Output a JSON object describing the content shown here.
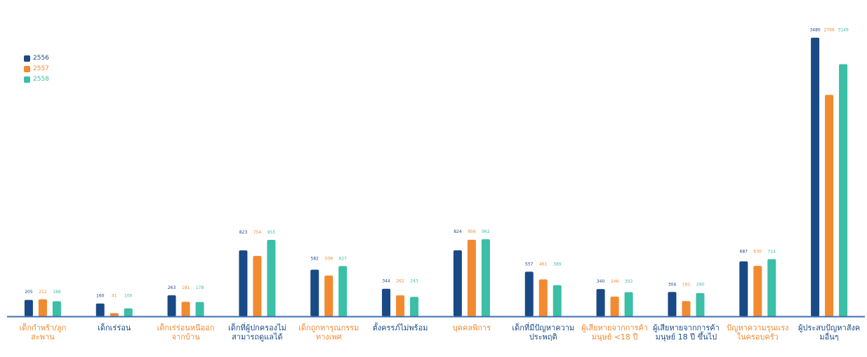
{
  "colors": {
    "s2556": "#1a4a86",
    "s2557": "#f28a30",
    "s2558": "#3bbfa6",
    "axis": "#3d6fae",
    "orange_label": "#f28a30",
    "blue_label": "#1a4a86"
  },
  "legend": [
    "2556",
    "2557",
    "2558"
  ],
  "chart_data": {
    "type": "bar",
    "title": "",
    "xlabel": "",
    "ylabel": "",
    "categories": [
      "เด็กกำพร้า/ลูกสะพาน",
      "เด็กเร่ร่อน",
      "เด็กเร่ร่อนหนีออกจากบ้าน",
      "เด็กที่ผู้ปกครองไม่สามารถดูแลได้",
      "เด็กถูกทารุณกรรมทางเพศ",
      "ตั้งครรภ์ไม่พร้อม",
      "บุคคลพิการ",
      "เด็กที่มีปัญหาความประพฤติ",
      "ผู้เสียหายจากการค้ามนุษย์ <18 ปี",
      "ผู้เสียหายจากการค้ามนุษย์ 18 ปี ขึ้นไป",
      "ปัญหาความรุนแรงในครอบครัว",
      "ผู้ประสบปัญหาสังคมอื่นๆ"
    ],
    "label_colors": [
      "orange",
      "blue",
      "orange",
      "blue",
      "orange",
      "blue",
      "orange",
      "blue",
      "orange",
      "blue",
      "orange",
      "blue"
    ],
    "series": [
      {
        "name": "2556",
        "values": [
          205,
          160,
          263,
          823,
          582,
          344,
          824,
          557,
          340,
          304,
          687,
          3480
        ]
      },
      {
        "name": "2557",
        "values": [
          212,
          41,
          181,
          754,
          509,
          262,
          956,
          461,
          246,
          191,
          630,
          2766
        ]
      },
      {
        "name": "2558",
        "values": [
          188,
          100,
          178,
          955,
          627,
          243,
          962,
          389,
          302,
          290,
          714,
          3149
        ]
      }
    ],
    "ylim": [
      0,
      3600
    ],
    "grid": false,
    "legend_position": "top-left"
  }
}
